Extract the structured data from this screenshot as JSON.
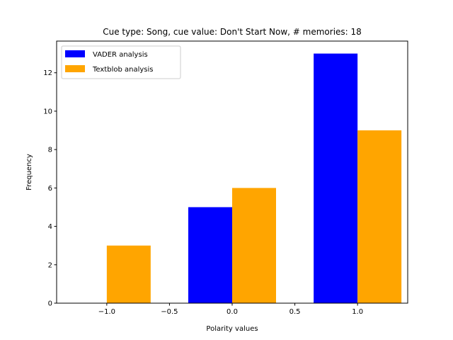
{
  "chart_data": {
    "type": "bar",
    "title": "Cue type: Song, cue value: Don't Start Now, # memories: 18",
    "xlabel": "Polarity values",
    "ylabel": "Frequency",
    "xlim": [
      -1.4,
      1.4
    ],
    "ylim": [
      0,
      13.65
    ],
    "bar_width": 0.35,
    "x_ticks": [
      -1.0,
      -0.5,
      0.0,
      0.5,
      1.0
    ],
    "x_tick_labels": [
      "−1.0",
      "−0.5",
      "0.0",
      "0.5",
      "1.0"
    ],
    "y_ticks": [
      0,
      2,
      4,
      6,
      8,
      10,
      12
    ],
    "y_tick_labels": [
      "0",
      "2",
      "4",
      "6",
      "8",
      "10",
      "12"
    ],
    "x": [
      -1.0,
      0.0,
      1.0
    ],
    "series": [
      {
        "name": "VADER analysis",
        "color": "#0000ff",
        "values": [
          0,
          5,
          13
        ],
        "offset": -0.175
      },
      {
        "name": "Textblob analysis",
        "color": "#ffa500",
        "values": [
          3,
          6,
          9
        ],
        "offset": 0.175
      }
    ],
    "legend": "top-left",
    "grid": false
  }
}
